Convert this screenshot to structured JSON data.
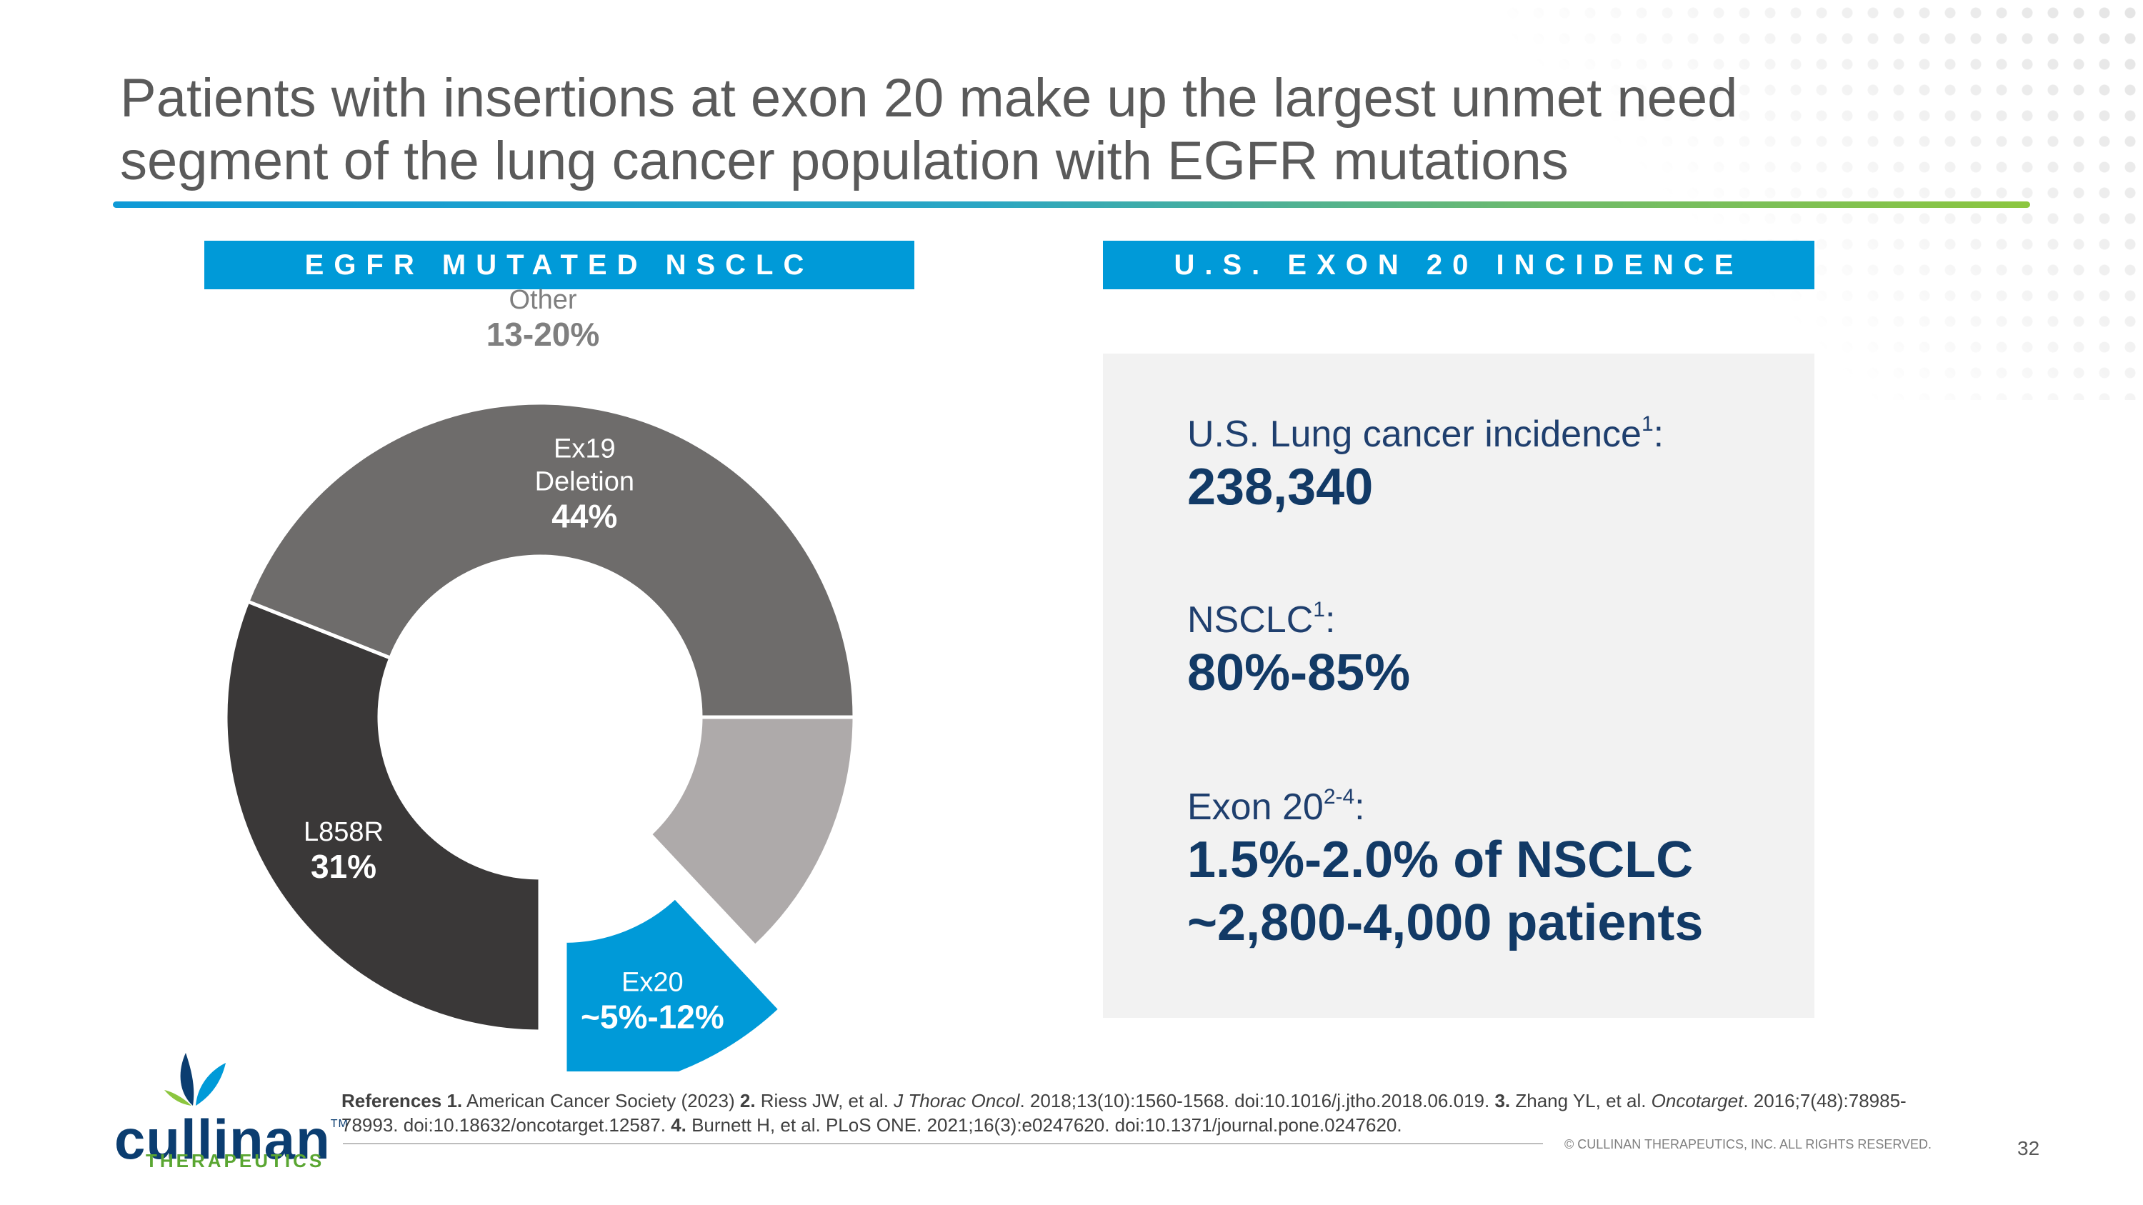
{
  "title": {
    "line1": "Patients with insertions at exon 20 make up the largest unmet need",
    "line2": "segment of the lung cancer population with EGFR mutations"
  },
  "colors": {
    "accent_blue": "#009ad8",
    "navy": "#123a66",
    "gray_dark": "#3a3838",
    "gray_mid": "#6e6c6b",
    "gray_light": "#aeaaaa",
    "panel_bg": "#f2f2f2",
    "rule_gradient": [
      "#0f9ad6",
      "#8cc63f"
    ]
  },
  "left_header": "EGFR MUTATED NSCLC",
  "right_header": "U.S. EXON 20 INCIDENCE",
  "chart_data": {
    "type": "pie",
    "subtype": "donut with one exploded slice",
    "title": "EGFR MUTATED NSCLC",
    "series": [
      {
        "name": "L858R",
        "label_lines": [
          "L858R"
        ],
        "value_label": "31%",
        "value": 31,
        "color": "#3a3838",
        "exploded": false,
        "text_color": "#ffffff"
      },
      {
        "name": "Ex19 Deletion",
        "label_lines": [
          "Ex19",
          "Deletion"
        ],
        "value_label": "44%",
        "value": 44,
        "color": "#6e6c6b",
        "exploded": false,
        "text_color": "#ffffff"
      },
      {
        "name": "Other",
        "label_lines": [
          "Other"
        ],
        "value_label": "13-20%",
        "value": 13,
        "color": "#aeaaaa",
        "exploded": false,
        "text_color": "#7f7f7f"
      },
      {
        "name": "Ex20",
        "label_lines": [
          "Ex20"
        ],
        "value_label": "~5%-12%",
        "value": 12,
        "color": "#009ad8",
        "exploded": true,
        "text_color": "#ffffff"
      }
    ]
  },
  "incidence": {
    "lung": {
      "label": "U.S. Lung cancer incidence",
      "sup": "1",
      "suffix": ":",
      "value": "238,340"
    },
    "nsclc": {
      "label": "NSCLC",
      "sup": "1",
      "suffix": ":",
      "value": "80%-85%"
    },
    "exon20": {
      "label": "Exon 20",
      "sup": "2-4",
      "suffix": ":",
      "value_line1": "1.5%-2.0% of NSCLC",
      "value_line2": "~2,800-4,000 patients"
    }
  },
  "logo": {
    "wordmark": "cullinan",
    "tm": "TM",
    "subtitle": "THERAPEUTICS"
  },
  "references": {
    "lead": "References",
    "r1_num": "1.",
    "r1": " American Cancer Society (2023) ",
    "r2_num": "2.",
    "r2a": " Riess JW, et al. ",
    "r2_journal": "J Thorac Oncol",
    "r2b": ". 2018;13(10):1560-1568. doi:10.1016/j.jtho.2018.06.019. ",
    "r3_num": "3.",
    "r3a": " Zhang YL, et al. ",
    "r3_journal": "Oncotarget",
    "r3b": ". 2016;7(48):78985-78993. doi:10.18632/oncotarget.12587. ",
    "r4_num": "4.",
    "r4": " Burnett H, et al. PLoS ONE. 2021;16(3):e0247620. doi:10.1371/journal.pone.0247620."
  },
  "footer": {
    "copyright": "© CULLINAN THERAPEUTICS, INC. ALL RIGHTS RESERVED.",
    "page_number": "32"
  }
}
